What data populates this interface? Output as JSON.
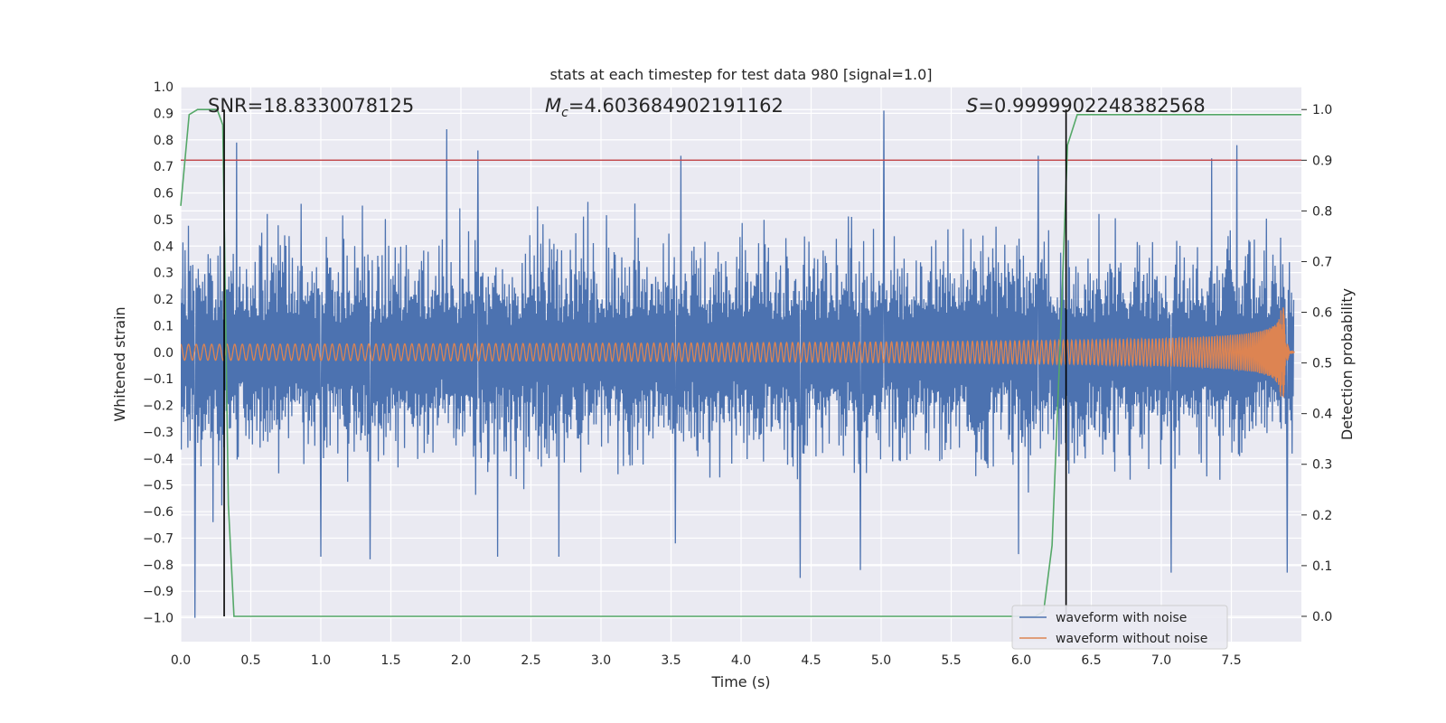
{
  "chart_data": {
    "type": "line",
    "title": "stats at each timestep for test data 980 [signal=1.0]",
    "xlabel": "Time (s)",
    "ylabel": "Whitened strain",
    "y2label": "Detection probability",
    "xlim": [
      0.0,
      8.0
    ],
    "ylim": [
      -1.09,
      1.0
    ],
    "y2lim": [
      -0.05,
      1.045
    ],
    "xticks": [
      "0.0",
      "0.5",
      "1.0",
      "1.5",
      "2.0",
      "2.5",
      "3.0",
      "3.5",
      "4.0",
      "4.5",
      "5.0",
      "5.5",
      "6.0",
      "6.5",
      "7.0",
      "7.5"
    ],
    "yticks": [
      "1.0",
      "0.9",
      "0.8",
      "0.7",
      "0.6",
      "0.5",
      "0.4",
      "0.3",
      "0.2",
      "0.1",
      "0.0",
      "−0.1",
      "−0.2",
      "−0.3",
      "−0.4",
      "−0.5",
      "−0.6",
      "−0.7",
      "−0.8",
      "−0.9",
      "−1.0"
    ],
    "y2ticks": [
      "0.0",
      "0.1",
      "0.2",
      "0.3",
      "0.4",
      "0.5",
      "0.6",
      "0.7",
      "0.8",
      "0.9",
      "1.0"
    ],
    "grid": true,
    "legend_position": "lower-right",
    "annotations": {
      "snr_label": "SNR=18.8330078125",
      "mc_symbol": "M",
      "mc_subscript": "c",
      "mc_value": "=4.603684902191162",
      "s_symbol": "S",
      "s_value": "=0.9999902248382568"
    },
    "threshold_line": {
      "y2": 0.9,
      "color": "#c44e52"
    },
    "event_markers_x": [
      0.31,
      6.32
    ],
    "series": [
      {
        "name": "waveform with noise",
        "color": "#4c72b0",
        "envelope": {
          "typical_amplitude": 0.4,
          "sample_rate_hz": 256
        },
        "spikes": [
          {
            "x": 1.9,
            "y": 0.84
          },
          {
            "x": 5.02,
            "y": 0.91
          },
          {
            "x": 0.4,
            "y": 0.79
          },
          {
            "x": 2.12,
            "y": 0.76
          },
          {
            "x": 3.57,
            "y": 0.74
          },
          {
            "x": 7.54,
            "y": 0.78
          },
          {
            "x": 7.36,
            "y": 0.73
          },
          {
            "x": 6.12,
            "y": 0.74
          },
          {
            "x": 0.1,
            "y": -1.0
          },
          {
            "x": 4.42,
            "y": -0.85
          },
          {
            "x": 0.23,
            "y": -0.64
          },
          {
            "x": 7.9,
            "y": -0.83
          },
          {
            "x": 7.07,
            "y": -0.83
          },
          {
            "x": 4.85,
            "y": -0.82
          },
          {
            "x": 1.35,
            "y": -0.78
          },
          {
            "x": 2.26,
            "y": -0.77
          },
          {
            "x": 2.7,
            "y": -0.77
          },
          {
            "x": 1.0,
            "y": -0.77
          },
          {
            "x": 5.98,
            "y": -0.76
          },
          {
            "x": 3.53,
            "y": -0.72
          }
        ]
      },
      {
        "name": "waveform without noise",
        "color": "#dd8452",
        "envelope": {
          "start_amplitude": 0.03,
          "peak_amplitude": 0.38,
          "merger_time": 7.86,
          "end_time": 8.0
        }
      },
      {
        "name": "",
        "color": "#55a868",
        "axis": "y2",
        "x": [
          0.0,
          0.06,
          0.12,
          0.2,
          0.26,
          0.3,
          0.34,
          0.38,
          6.1,
          6.16,
          6.22,
          6.28,
          6.33,
          6.4,
          8.0
        ],
        "y": [
          0.81,
          0.99,
          1.0,
          1.0,
          1.0,
          0.97,
          0.22,
          0.0,
          0.0,
          0.01,
          0.14,
          0.55,
          0.93,
          0.99,
          0.99
        ]
      }
    ]
  }
}
